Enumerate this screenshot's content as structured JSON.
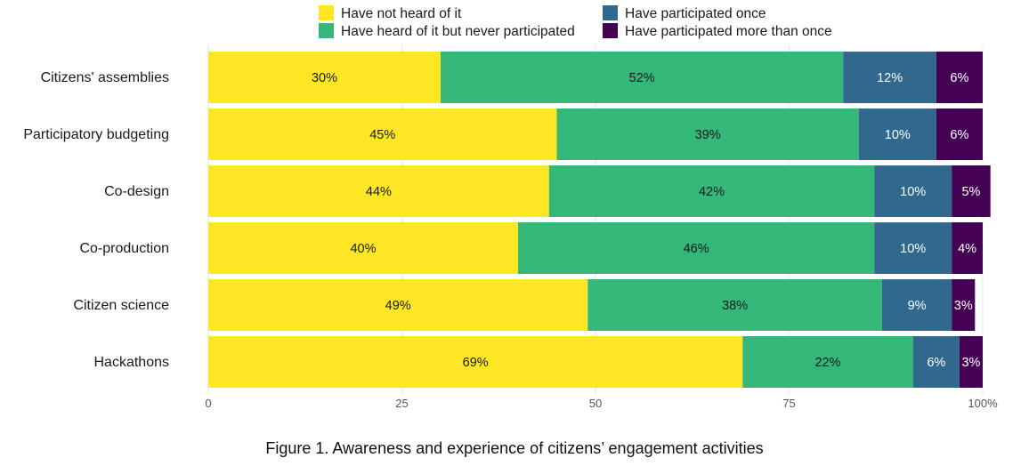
{
  "caption": "Figure 1. Awareness and experience of citizens’ engagement activities",
  "chart_data": {
    "type": "bar",
    "orientation": "horizontal",
    "stacked": true,
    "categories": [
      "Citizens' assemblies",
      "Participatory budgeting",
      "Co-design",
      "Co-production",
      "Citizen science",
      "Hackathons"
    ],
    "series": [
      {
        "name": "Have not heard of it",
        "color": "#fde725",
        "label_color": "#1a1a1a",
        "values": [
          30,
          45,
          44,
          40,
          49,
          69
        ]
      },
      {
        "name": "Have heard of it but never participated",
        "color": "#35b779",
        "label_color": "#1a1a1a",
        "values": [
          52,
          39,
          42,
          46,
          38,
          22
        ]
      },
      {
        "name": "Have participated once",
        "color": "#31688e",
        "label_color": "#ffffff",
        "values": [
          12,
          10,
          10,
          10,
          9,
          6
        ]
      },
      {
        "name": "Have participated more than once",
        "color": "#440154",
        "label_color": "#ffffff",
        "values": [
          6,
          6,
          5,
          4,
          3,
          3
        ]
      }
    ],
    "data_labels": [
      [
        "30%",
        "45%",
        "44%",
        "40%",
        "49%",
        "69%"
      ],
      [
        "52%",
        "39%",
        "42%",
        "46%",
        "38%",
        "22%"
      ],
      [
        "12%",
        "10%",
        "10%",
        "10%",
        "9%",
        "6%"
      ],
      [
        "6%",
        "6%",
        "5%",
        "4%",
        "3%",
        "3%"
      ]
    ],
    "xlim": [
      0,
      100
    ],
    "x_ticks": [
      0,
      25,
      50,
      75,
      100
    ],
    "x_tick_labels": [
      "0",
      "25",
      "50",
      "75",
      "100%"
    ],
    "grid": true,
    "legend_position": "top"
  }
}
